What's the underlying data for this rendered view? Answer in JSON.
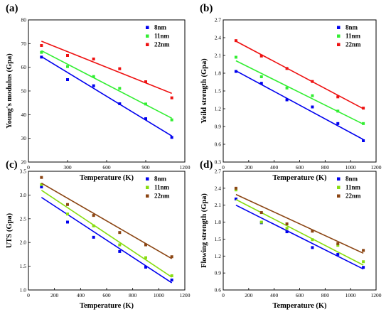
{
  "chart_data": [
    {
      "type": "scatter",
      "panel_label": "(a)",
      "xlabel": "Temperature (K)",
      "ylabel": "Young's modulus (Gpa)",
      "xlim": [
        0,
        1200
      ],
      "ylim": [
        20,
        80
      ],
      "xticks": [
        0,
        300,
        600,
        900,
        1200
      ],
      "yticks": [
        20,
        30,
        40,
        50,
        60,
        70,
        80
      ],
      "legend_position": "top-right",
      "fit_lines": true,
      "series": [
        {
          "name": "8nm",
          "color": "#0000ee",
          "x": [
            100,
            300,
            500,
            700,
            900,
            1100
          ],
          "y": [
            64.3,
            54.8,
            52.2,
            44.6,
            38.3,
            30.4
          ],
          "fit": [
            [
              100,
              64.5
            ],
            [
              1100,
              31.0
            ]
          ]
        },
        {
          "name": "11nm",
          "color": "#33ee33",
          "x": [
            100,
            300,
            500,
            700,
            900,
            1100
          ],
          "y": [
            66.3,
            60.3,
            56.1,
            51.1,
            44.5,
            37.8
          ],
          "fit": [
            [
              100,
              67.0
            ],
            [
              1100,
              38.5
            ]
          ]
        },
        {
          "name": "22nm",
          "color": "#ee1111",
          "x": [
            100,
            300,
            500,
            700,
            900,
            1100
          ],
          "y": [
            69.2,
            65.0,
            63.5,
            59.4,
            53.9,
            47.1
          ],
          "fit": [
            [
              100,
              71.0
            ],
            [
              1100,
              49.0
            ]
          ]
        }
      ]
    },
    {
      "type": "scatter",
      "panel_label": "(b)",
      "xlabel": "Temperature (K)",
      "ylabel": "Yeild strength (Gpa)",
      "xlim": [
        0,
        1200
      ],
      "ylim": [
        0.3,
        2.7
      ],
      "xticks": [
        0,
        200,
        400,
        600,
        800,
        1000,
        1200
      ],
      "yticks": [
        0.3,
        0.6,
        0.9,
        1.2,
        1.5,
        1.8,
        2.1,
        2.4,
        2.7
      ],
      "tick_labels_y": [
        "0.3",
        "0.6",
        "0.9",
        "1.2",
        "1.5",
        "1.8",
        "2.1",
        "2.4",
        "2.7"
      ],
      "legend_position": "top-right",
      "fit_lines": true,
      "series": [
        {
          "name": "8nm",
          "color": "#0000ee",
          "x": [
            100,
            300,
            500,
            700,
            900,
            1100
          ],
          "y": [
            1.83,
            1.63,
            1.35,
            1.23,
            0.95,
            0.66
          ],
          "fit": [
            [
              100,
              1.84
            ],
            [
              1100,
              0.68
            ]
          ]
        },
        {
          "name": "11nm",
          "color": "#33ee33",
          "x": [
            100,
            300,
            500,
            700,
            900,
            1100
          ],
          "y": [
            2.07,
            1.74,
            1.55,
            1.42,
            1.16,
            0.95
          ],
          "fit": [
            [
              100,
              2.01
            ],
            [
              1100,
              0.94
            ]
          ]
        },
        {
          "name": "22nm",
          "color": "#ee1111",
          "x": [
            100,
            300,
            500,
            700,
            900,
            1100
          ],
          "y": [
            2.35,
            2.09,
            1.88,
            1.66,
            1.4,
            1.21
          ],
          "fit": [
            [
              100,
              2.34
            ],
            [
              1100,
              1.2
            ]
          ]
        }
      ]
    },
    {
      "type": "scatter",
      "panel_label": "(c)",
      "xlabel": "Temperature (K)",
      "ylabel": "UTS (Gpa)",
      "xlim": [
        0,
        1200
      ],
      "ylim": [
        1.0,
        3.5
      ],
      "xticks": [
        0,
        200,
        400,
        600,
        800,
        1000,
        1200
      ],
      "yticks": [
        1.0,
        1.5,
        2.0,
        2.5,
        3.0,
        3.5
      ],
      "tick_labels_y": [
        "1.0",
        "1.5",
        "2.0",
        "2.5",
        "3.0",
        "3.5"
      ],
      "legend_position": "top-right",
      "fit_lines": true,
      "series": [
        {
          "name": "8nm",
          "color": "#0000ee",
          "x": [
            100,
            300,
            500,
            700,
            900,
            1100
          ],
          "y": [
            3.17,
            2.43,
            2.11,
            1.81,
            1.48,
            1.21
          ],
          "fit": [
            [
              100,
              2.95
            ],
            [
              1100,
              1.15
            ]
          ]
        },
        {
          "name": "11nm",
          "color": "#88dd11",
          "x": [
            100,
            300,
            500,
            700,
            900,
            1100
          ],
          "y": [
            3.22,
            2.6,
            2.35,
            1.95,
            1.68,
            1.3
          ],
          "fit": [
            [
              100,
              3.1
            ],
            [
              1100,
              1.27
            ]
          ]
        },
        {
          "name": "22nm",
          "color": "#8b4513",
          "x": [
            100,
            300,
            500,
            700,
            900,
            1100
          ],
          "y": [
            3.37,
            2.8,
            2.57,
            2.21,
            1.95,
            1.7
          ],
          "fit": [
            [
              100,
              3.25
            ],
            [
              1100,
              1.66
            ]
          ]
        }
      ]
    },
    {
      "type": "scatter",
      "panel_label": "(d)",
      "xlabel": "Temperature (K)",
      "ylabel": "Flowing strength (Gpa)",
      "xlim": [
        0,
        1200
      ],
      "ylim": [
        0.6,
        2.7
      ],
      "xticks": [
        0,
        200,
        400,
        600,
        800,
        1000,
        1200
      ],
      "yticks": [
        0.6,
        0.9,
        1.2,
        1.5,
        1.8,
        2.1,
        2.4,
        2.7
      ],
      "tick_labels_y": [
        "0.6",
        "0.9",
        "1.2",
        "1.5",
        "1.8",
        "2.1",
        "2.4",
        "2.7"
      ],
      "legend_position": "top-right",
      "fit_lines": true,
      "series": [
        {
          "name": "8nm",
          "color": "#0000ee",
          "x": [
            100,
            300,
            500,
            700,
            900,
            1100
          ],
          "y": [
            2.21,
            1.79,
            1.63,
            1.35,
            1.23,
            1.0
          ],
          "fit": [
            [
              100,
              2.1
            ],
            [
              1100,
              0.97
            ]
          ]
        },
        {
          "name": "11nm",
          "color": "#88dd11",
          "x": [
            100,
            300,
            500,
            700,
            900,
            1100
          ],
          "y": [
            2.37,
            1.8,
            1.69,
            1.49,
            1.39,
            1.1
          ],
          "fit": [
            [
              100,
              2.2
            ],
            [
              1100,
              1.04
            ]
          ]
        },
        {
          "name": "22nm",
          "color": "#8b4513",
          "x": [
            100,
            300,
            500,
            700,
            900,
            1100
          ],
          "y": [
            2.4,
            1.97,
            1.77,
            1.64,
            1.42,
            1.3
          ],
          "fit": [
            [
              100,
              2.29
            ],
            [
              1100,
              1.25
            ]
          ]
        }
      ]
    }
  ]
}
